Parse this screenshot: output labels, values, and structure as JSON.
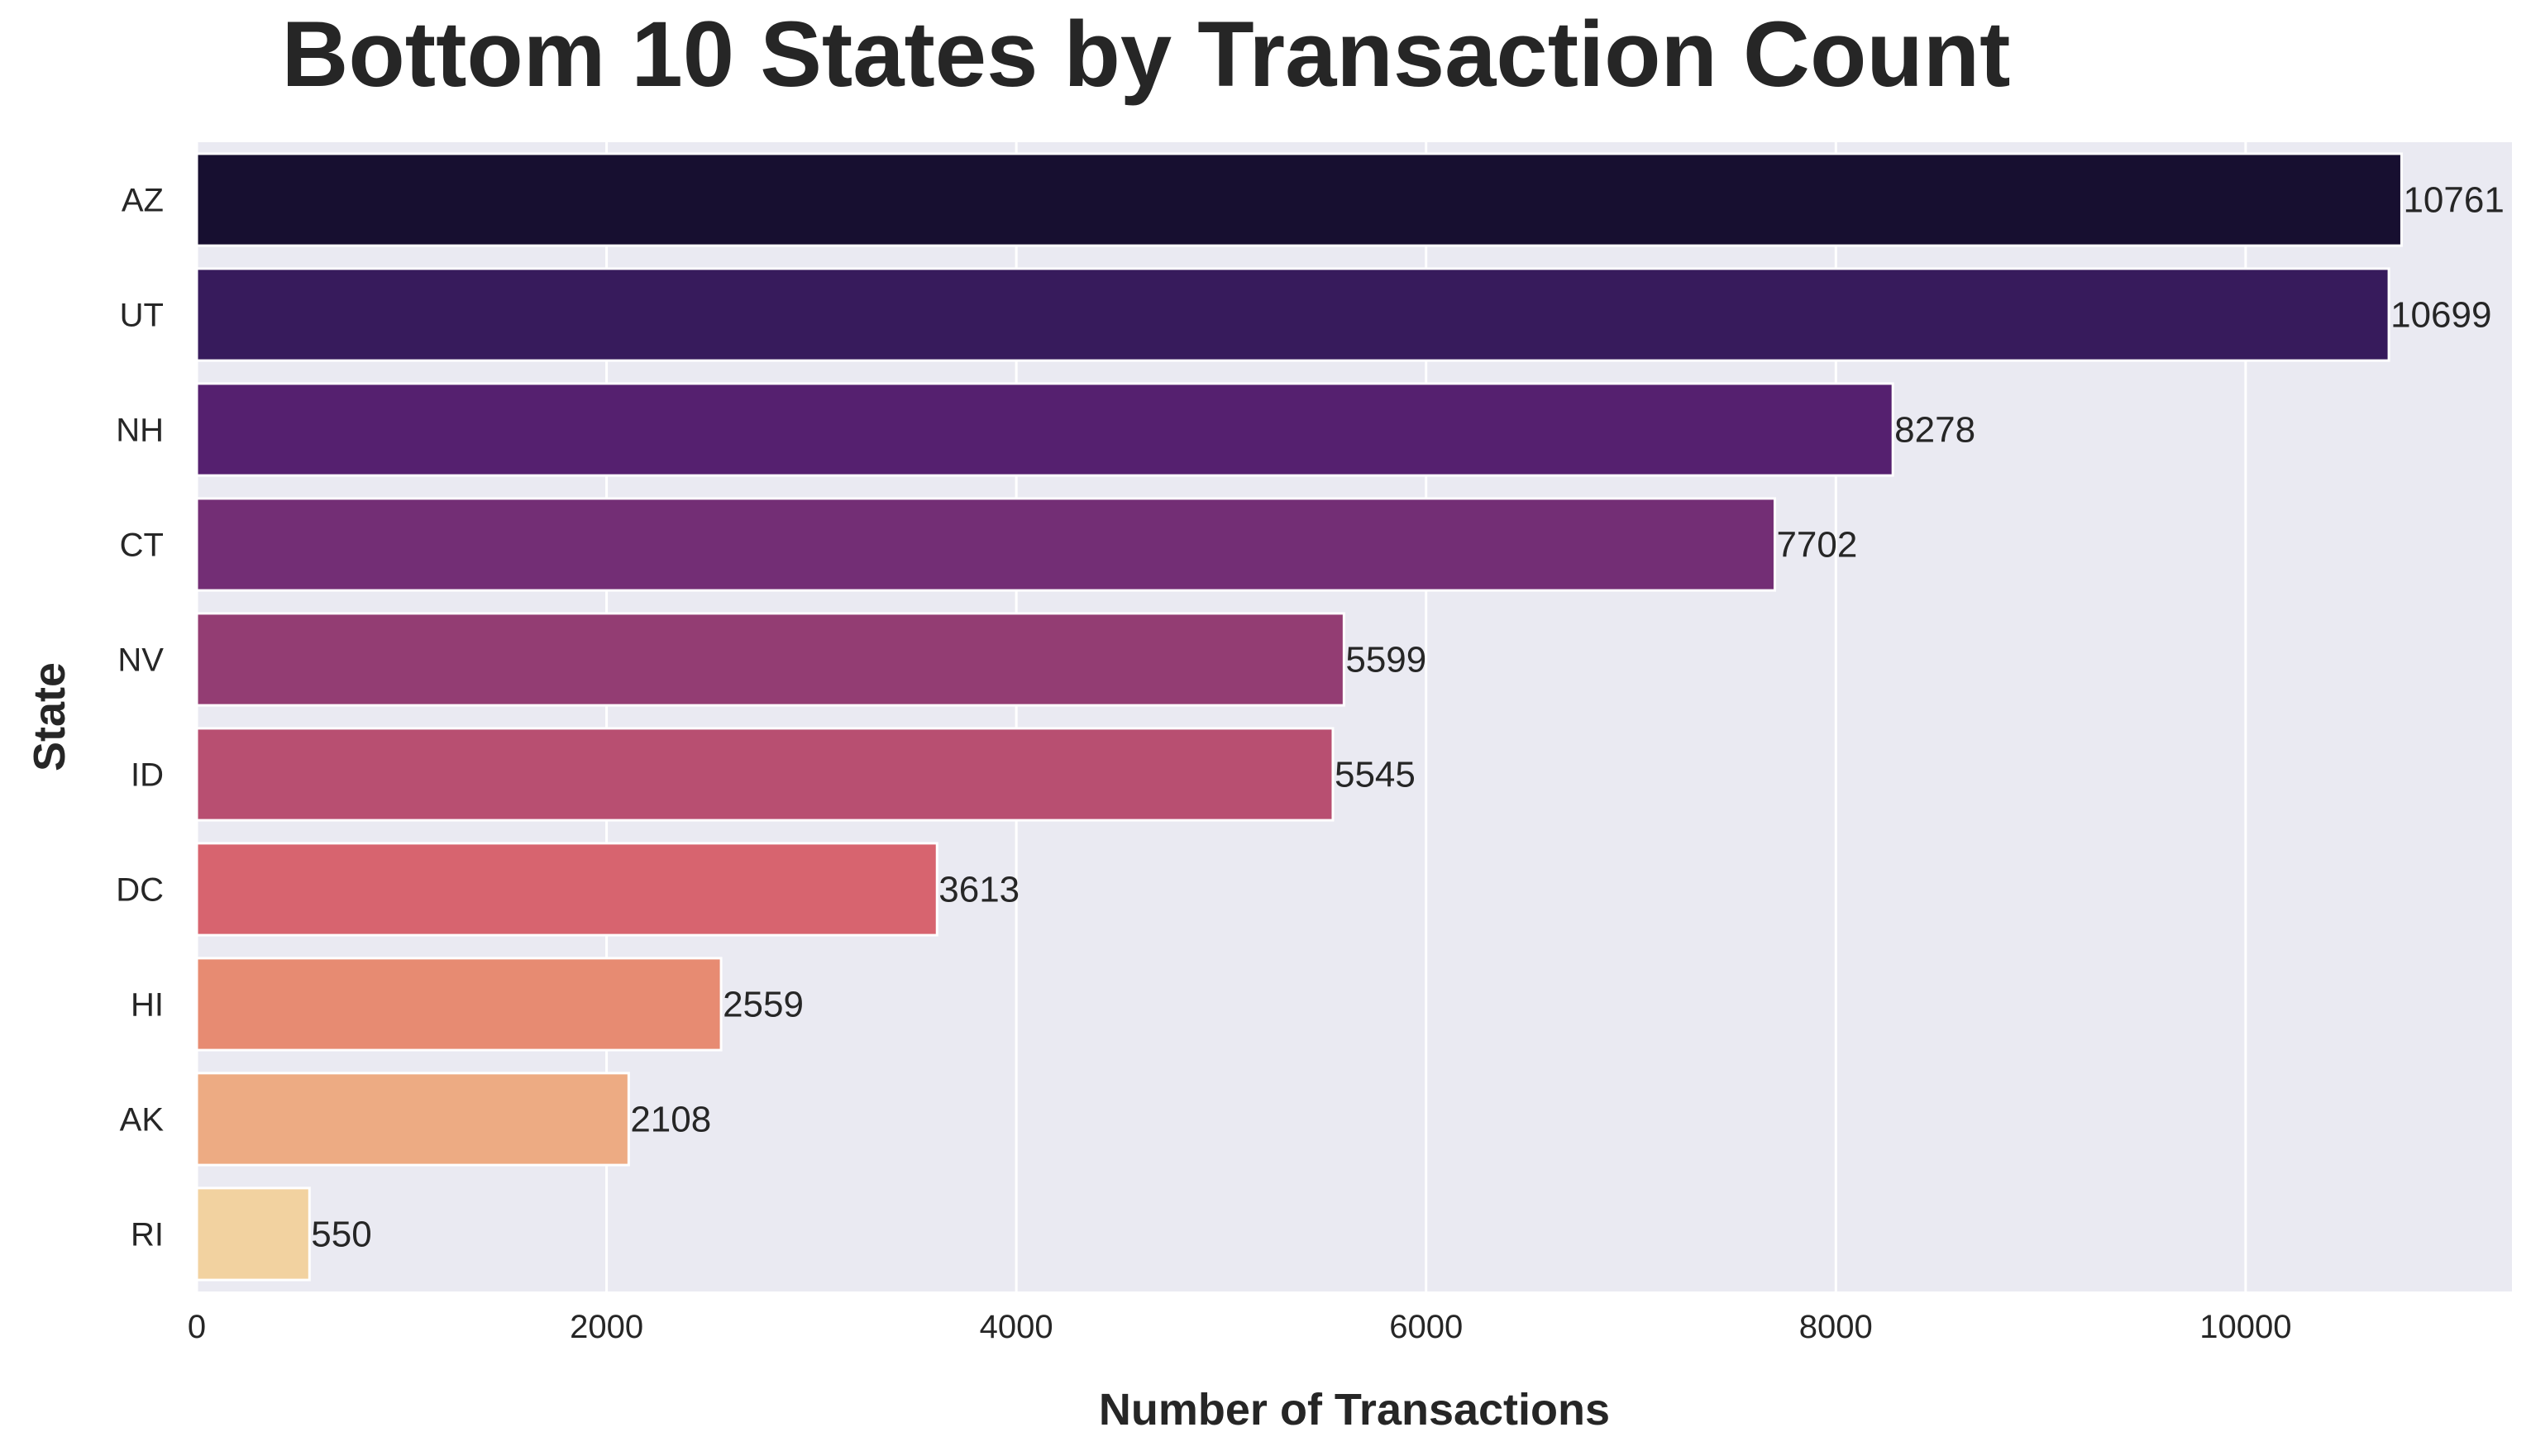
{
  "chart_data": {
    "type": "bar",
    "orientation": "horizontal",
    "title": "Bottom 10 States by Transaction Count",
    "xlabel": "Number of Transactions",
    "ylabel": "State",
    "categories": [
      "AZ",
      "UT",
      "NH",
      "CT",
      "NV",
      "ID",
      "DC",
      "HI",
      "AK",
      "RI"
    ],
    "values": [
      10761,
      10699,
      8278,
      7702,
      5599,
      5545,
      3613,
      2559,
      2108,
      550
    ],
    "data_labels": [
      "10761",
      "10699",
      "8278",
      "7702",
      "5599",
      "5545",
      "3613",
      "2559",
      "2108",
      "550"
    ],
    "xlim": [
      0,
      11300
    ],
    "xticks": [
      0,
      2000,
      4000,
      6000,
      8000,
      10000
    ],
    "xtick_labels": [
      "0",
      "2000",
      "4000",
      "6000",
      "8000",
      "10000"
    ],
    "grid": "vertical",
    "legend": "none",
    "colors": [
      "#170f30",
      "#371b5c",
      "#55206f",
      "#732e75",
      "#933d73",
      "#b84f71",
      "#d7646f",
      "#e78b72",
      "#edab83",
      "#f2d2a0"
    ],
    "plot_background": "#eaeaf2"
  }
}
